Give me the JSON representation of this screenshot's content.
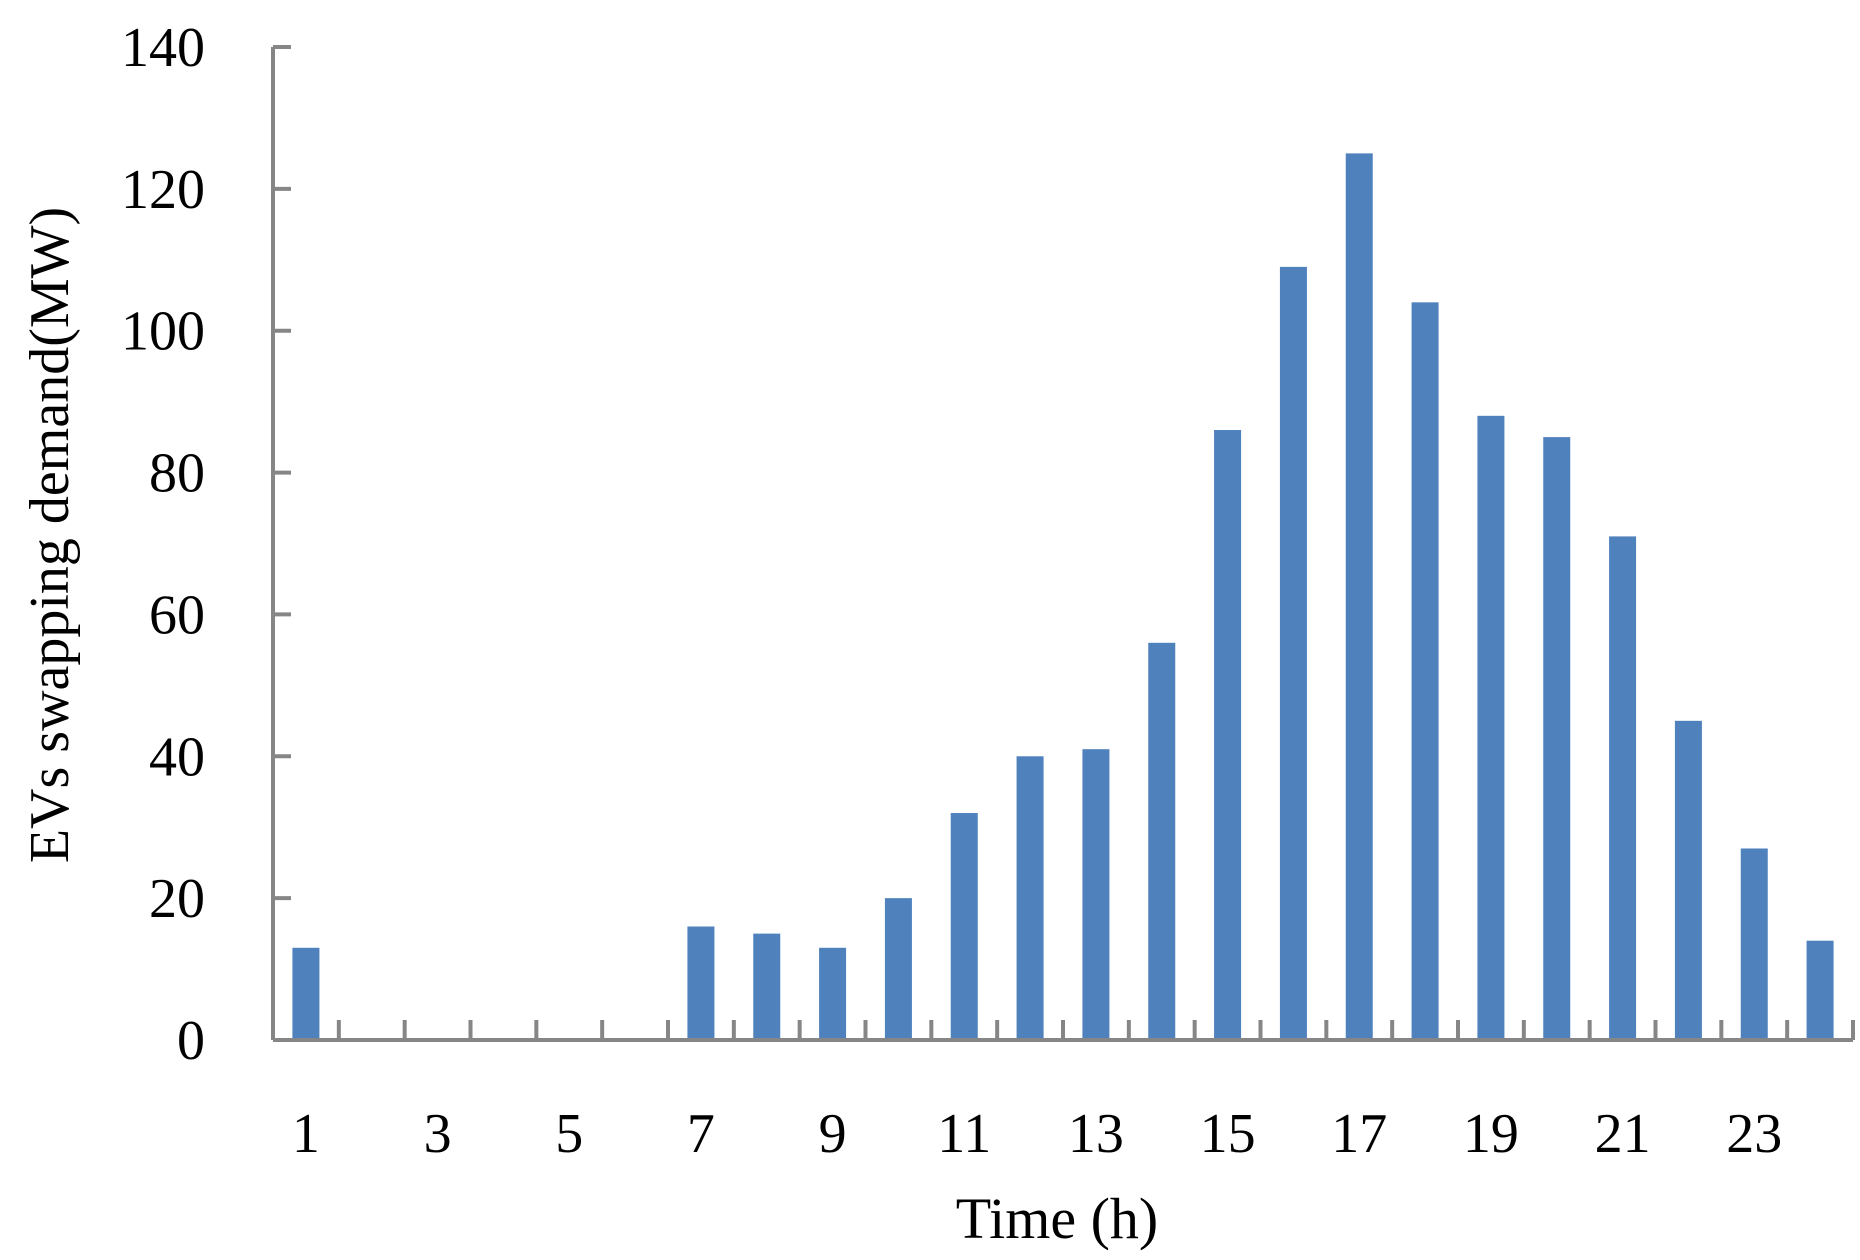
{
  "chart_data": {
    "type": "bar",
    "title": "",
    "xlabel": "Time (h)",
    "ylabel": "EVs swapping demand(MW)",
    "categories": [
      "1",
      "2",
      "3",
      "4",
      "5",
      "6",
      "7",
      "8",
      "9",
      "10",
      "11",
      "12",
      "13",
      "14",
      "15",
      "16",
      "17",
      "18",
      "19",
      "20",
      "21",
      "22",
      "23",
      "24"
    ],
    "values": [
      13,
      0,
      0,
      0,
      0,
      0,
      16,
      15,
      13,
      20,
      32,
      40,
      41,
      56,
      86,
      109,
      125,
      104,
      88,
      85,
      71,
      45,
      27,
      14
    ],
    "x_tick_labels": [
      "1",
      "3",
      "5",
      "7",
      "9",
      "11",
      "13",
      "15",
      "17",
      "19",
      "21",
      "23"
    ],
    "y_ticks": [
      0,
      20,
      40,
      60,
      80,
      100,
      120,
      140
    ],
    "ylim": [
      0,
      140
    ],
    "grid": false,
    "legend": "none",
    "bar_color": "#4f81bd",
    "axis_color": "#868686"
  }
}
